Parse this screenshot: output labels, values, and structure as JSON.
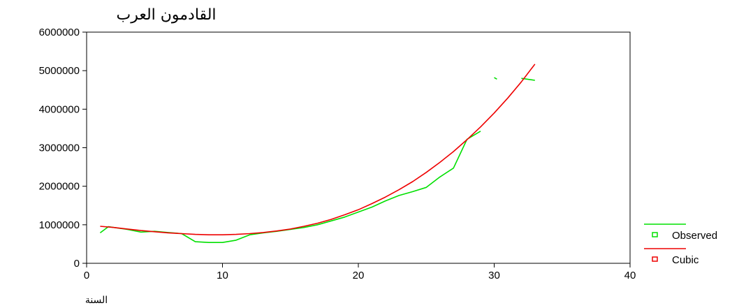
{
  "chart_data": {
    "type": "line",
    "title": "القادمون العرب",
    "xlabel": "السنة",
    "ylabel": "",
    "xlim": [
      0,
      40
    ],
    "ylim": [
      0,
      6000000
    ],
    "x_ticks": [
      0,
      10,
      20,
      30,
      40
    ],
    "y_ticks": [
      0,
      1000000,
      2000000,
      3000000,
      4000000,
      5000000,
      6000000
    ],
    "grid": false,
    "legend_position": "right",
    "series": [
      {
        "name": "Observed",
        "color": "#00e000",
        "marker": "square",
        "segments": [
          [
            [
              1,
              790000
            ],
            [
              1.6,
              950000
            ],
            [
              3,
              880000
            ],
            [
              4,
              810000
            ],
            [
              5,
              830000
            ],
            [
              6,
              800000
            ],
            [
              7,
              770000
            ],
            [
              8,
              560000
            ],
            [
              9,
              540000
            ],
            [
              10,
              540000
            ],
            [
              11,
              600000
            ],
            [
              12,
              740000
            ],
            [
              13,
              790000
            ],
            [
              14,
              830000
            ],
            [
              15,
              880000
            ],
            [
              16,
              930000
            ],
            [
              17,
              1000000
            ],
            [
              18,
              1100000
            ],
            [
              19,
              1200000
            ],
            [
              20,
              1330000
            ],
            [
              21,
              1460000
            ],
            [
              22,
              1620000
            ],
            [
              23,
              1760000
            ],
            [
              24,
              1860000
            ],
            [
              25,
              1970000
            ],
            [
              26,
              2240000
            ],
            [
              27,
              2470000
            ],
            [
              28,
              3220000
            ],
            [
              29,
              3430000
            ]
          ],
          [
            [
              30,
              4820000
            ],
            [
              30.2,
              4780000
            ]
          ],
          [
            [
              32,
              4800000
            ],
            [
              33,
              4750000
            ]
          ]
        ]
      },
      {
        "name": "Cubic",
        "color": "#ee0000",
        "marker": "square",
        "points": [
          [
            1,
            960000
          ],
          [
            2,
            930000
          ],
          [
            3,
            890000
          ],
          [
            4,
            850000
          ],
          [
            5,
            820000
          ],
          [
            6,
            790000
          ],
          [
            7,
            770000
          ],
          [
            8,
            750000
          ],
          [
            9,
            740000
          ],
          [
            10,
            740000
          ],
          [
            11,
            750000
          ],
          [
            12,
            770000
          ],
          [
            13,
            800000
          ],
          [
            14,
            840000
          ],
          [
            15,
            890000
          ],
          [
            16,
            960000
          ],
          [
            17,
            1040000
          ],
          [
            18,
            1140000
          ],
          [
            19,
            1260000
          ],
          [
            20,
            1390000
          ],
          [
            21,
            1550000
          ],
          [
            22,
            1720000
          ],
          [
            23,
            1910000
          ],
          [
            24,
            2120000
          ],
          [
            25,
            2360000
          ],
          [
            26,
            2620000
          ],
          [
            27,
            2900000
          ],
          [
            28,
            3210000
          ],
          [
            29,
            3540000
          ],
          [
            30,
            3900000
          ],
          [
            31,
            4290000
          ],
          [
            32,
            4710000
          ],
          [
            33,
            5170000
          ]
        ]
      }
    ]
  }
}
